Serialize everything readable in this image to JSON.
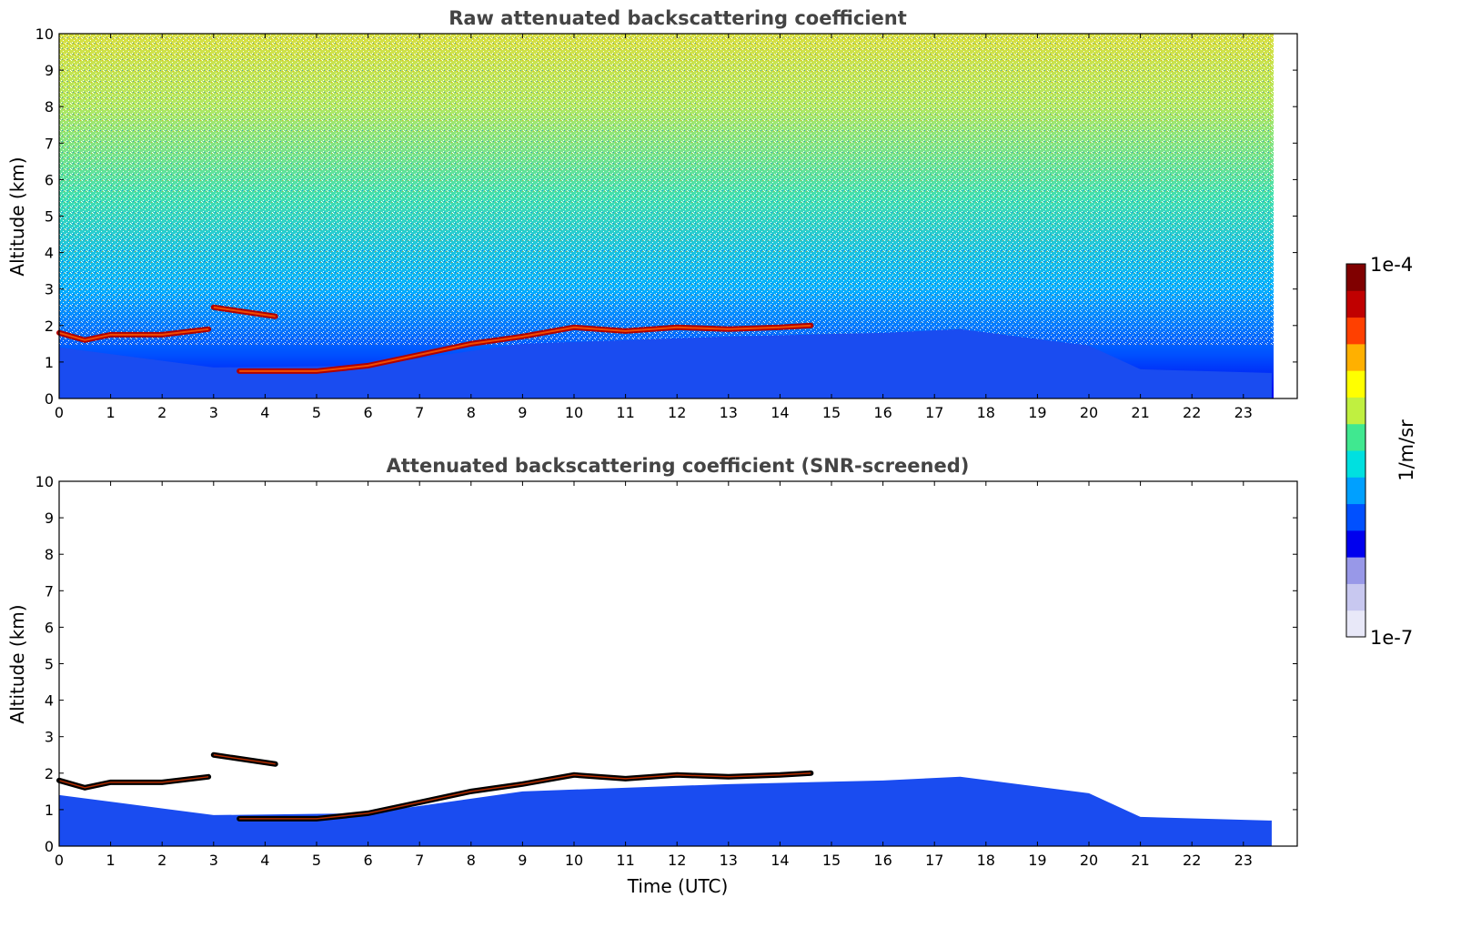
{
  "chart_data": [
    {
      "type": "heatmap",
      "title": "Raw attenuated backscattering coefficient",
      "xlabel": "",
      "ylabel": "Altitude (km)",
      "xlim": [
        0,
        24
      ],
      "ylim": [
        0,
        10
      ],
      "x_ticks": [
        0,
        1,
        2,
        3,
        4,
        5,
        6,
        7,
        8,
        9,
        10,
        11,
        12,
        13,
        14,
        15,
        16,
        17,
        18,
        19,
        20,
        21,
        22,
        23
      ],
      "y_ticks": [
        0,
        1,
        2,
        3,
        4,
        5,
        6,
        7,
        8,
        9,
        10
      ],
      "data_extent_time": [
        0,
        23.55
      ],
      "cloud_layer": [
        {
          "time": 0.0,
          "altitude": 1.8
        },
        {
          "time": 0.5,
          "altitude": 1.6
        },
        {
          "time": 1.0,
          "altitude": 1.75
        },
        {
          "time": 2.0,
          "altitude": 1.75
        },
        {
          "time": 2.9,
          "altitude": 1.9
        },
        {
          "time": 3.0,
          "altitude": 2.5
        },
        {
          "time": 4.2,
          "altitude": 2.25
        },
        {
          "time": 3.5,
          "altitude": 0.75
        },
        {
          "time": 5.0,
          "altitude": 0.75
        },
        {
          "time": 6.0,
          "altitude": 0.9
        },
        {
          "time": 7.0,
          "altitude": 1.2
        },
        {
          "time": 8.0,
          "altitude": 1.5
        },
        {
          "time": 9.0,
          "altitude": 1.7
        },
        {
          "time": 10.0,
          "altitude": 1.95
        },
        {
          "time": 11.0,
          "altitude": 1.85
        },
        {
          "time": 12.0,
          "altitude": 1.95
        },
        {
          "time": 13.0,
          "altitude": 1.9
        },
        {
          "time": 14.0,
          "altitude": 1.95
        },
        {
          "time": 14.6,
          "altitude": 2.0
        }
      ],
      "boundary_layer_top": [
        {
          "time": 0,
          "altitude": 1.4
        },
        {
          "time": 3,
          "altitude": 0.85
        },
        {
          "time": 6,
          "altitude": 0.9
        },
        {
          "time": 9,
          "altitude": 1.5
        },
        {
          "time": 13,
          "altitude": 1.7
        },
        {
          "time": 16,
          "altitude": 1.8
        },
        {
          "time": 17.5,
          "altitude": 1.9
        },
        {
          "time": 20,
          "altitude": 1.45
        },
        {
          "time": 21,
          "altitude": 0.8
        },
        {
          "time": 23.5,
          "altitude": 0.7
        }
      ]
    },
    {
      "type": "heatmap",
      "title": "Attenuated backscattering coefficient (SNR-screened)",
      "xlabel": "Time (UTC)",
      "ylabel": "Altitude (km)",
      "xlim": [
        0,
        24
      ],
      "ylim": [
        0,
        10
      ],
      "x_ticks": [
        0,
        1,
        2,
        3,
        4,
        5,
        6,
        7,
        8,
        9,
        10,
        11,
        12,
        13,
        14,
        15,
        16,
        17,
        18,
        19,
        20,
        21,
        22,
        23
      ],
      "y_ticks": [
        0,
        1,
        2,
        3,
        4,
        5,
        6,
        7,
        8,
        9,
        10
      ],
      "data_extent_time": [
        0,
        23.55
      ],
      "cloud_layer": [
        {
          "time": 0.0,
          "altitude": 1.8
        },
        {
          "time": 0.5,
          "altitude": 1.6
        },
        {
          "time": 1.0,
          "altitude": 1.75
        },
        {
          "time": 2.0,
          "altitude": 1.75
        },
        {
          "time": 2.9,
          "altitude": 1.9
        },
        {
          "time": 3.0,
          "altitude": 2.5
        },
        {
          "time": 4.2,
          "altitude": 2.25
        },
        {
          "time": 3.5,
          "altitude": 0.75
        },
        {
          "time": 5.0,
          "altitude": 0.75
        },
        {
          "time": 6.0,
          "altitude": 0.9
        },
        {
          "time": 7.0,
          "altitude": 1.2
        },
        {
          "time": 8.0,
          "altitude": 1.5
        },
        {
          "time": 9.0,
          "altitude": 1.7
        },
        {
          "time": 10.0,
          "altitude": 1.95
        },
        {
          "time": 11.0,
          "altitude": 1.85
        },
        {
          "time": 12.0,
          "altitude": 1.95
        },
        {
          "time": 13.0,
          "altitude": 1.9
        },
        {
          "time": 14.0,
          "altitude": 1.95
        },
        {
          "time": 14.6,
          "altitude": 2.0
        }
      ],
      "boundary_layer_top": [
        {
          "time": 0,
          "altitude": 1.4
        },
        {
          "time": 3,
          "altitude": 0.85
        },
        {
          "time": 6,
          "altitude": 0.9
        },
        {
          "time": 9,
          "altitude": 1.5
        },
        {
          "time": 13,
          "altitude": 1.7
        },
        {
          "time": 16,
          "altitude": 1.8
        },
        {
          "time": 17.5,
          "altitude": 1.9
        },
        {
          "time": 20,
          "altitude": 1.45
        },
        {
          "time": 21,
          "altitude": 0.8
        },
        {
          "time": 23.5,
          "altitude": 0.7
        }
      ]
    }
  ],
  "colorbar": {
    "label": "1/m/sr",
    "max_label": "1e-4",
    "min_label": "1e-7",
    "scale": "log",
    "colors": [
      "#e8e8f8",
      "#c8c8f0",
      "#9898e8",
      "#0000ee",
      "#0050ff",
      "#00a0ff",
      "#00e0e0",
      "#40e890",
      "#c0f040",
      "#ffff00",
      "#ffb000",
      "#ff4000",
      "#c00000",
      "#800000"
    ]
  }
}
